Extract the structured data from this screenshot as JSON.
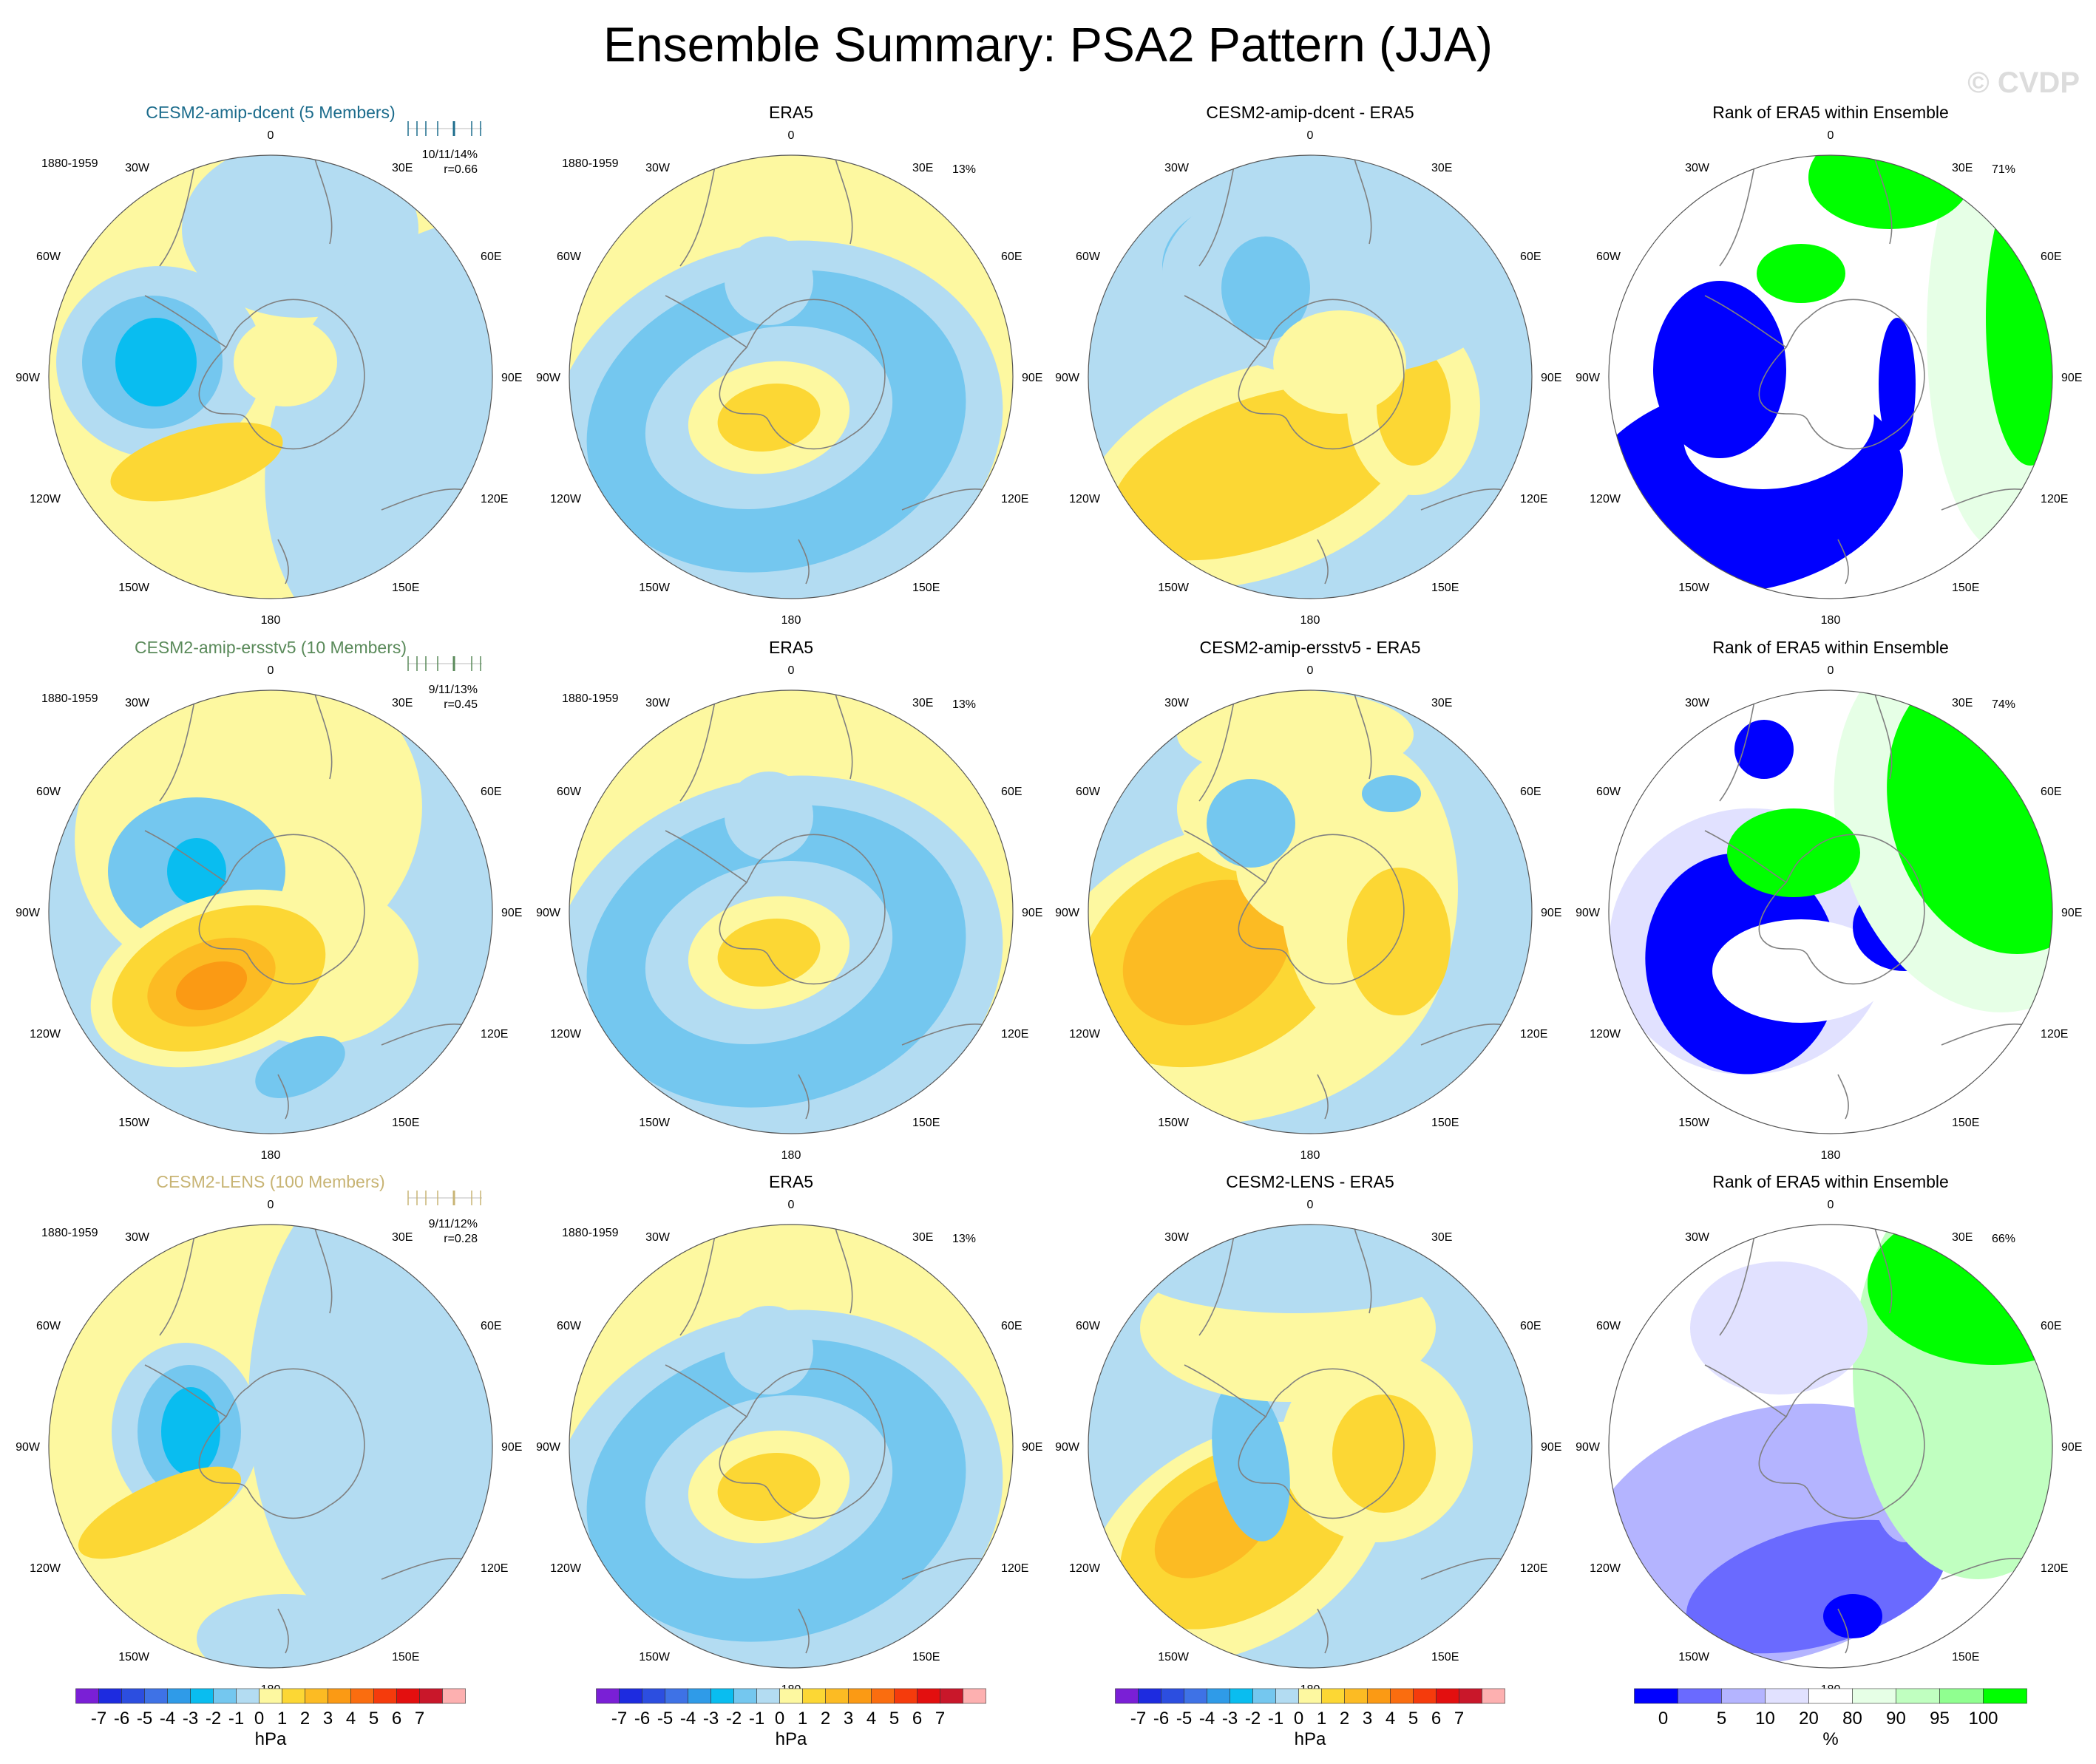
{
  "title": "Ensemble Summary: PSA2 Pattern (JJA)",
  "watermark": "© CVDP",
  "colors": {
    "neg_levels": [
      "#7a1fd6",
      "#1d2be0",
      "#2c4ee0",
      "#3e72e6",
      "#2f9be8",
      "#09bdf0",
      "#74c7ef",
      "#b3dcf2"
    ],
    "pos_levels": [
      "#fdf8a0",
      "#fcd734",
      "#fcbb23",
      "#fb9a14",
      "#fa6d0f",
      "#f53b0c",
      "#e30f0f",
      "#c9172a",
      "#fdb0b0"
    ],
    "ocean_base": "#fdf8a0",
    "rank_levels": [
      "#0000ff",
      "#6a6aff",
      "#b4b4ff",
      "#e1e1ff",
      "#ffffff",
      "#e6ffe6",
      "#c0ffc0",
      "#90ff90",
      "#00ff00"
    ],
    "row_title_colors": [
      "#1c6c8c",
      "#5a8a5a",
      "#c8b474"
    ],
    "land_outline": "#808080"
  },
  "geo_labels": {
    "period": "1880-1959",
    "lon_ticks": [
      "0",
      "30E",
      "60E",
      "90E",
      "120E",
      "150E",
      "180",
      "150W",
      "120W",
      "90W",
      "60W",
      "30W"
    ]
  },
  "rows": [
    {
      "model_title": "CESM2-amip-dcent (5 Members)",
      "obs_title": "ERA5",
      "diff_title": "CESM2-amip-dcent - ERA5",
      "rank_title": "Rank of ERA5 within Ensemble",
      "stats": "10/11/14%",
      "corr": "r=0.66",
      "obs_pct": "13%",
      "rank_pct": "71%"
    },
    {
      "model_title": "CESM2-amip-ersstv5 (10 Members)",
      "obs_title": "ERA5",
      "diff_title": "CESM2-amip-ersstv5 - ERA5",
      "rank_title": "Rank of ERA5 within Ensemble",
      "stats": "9/11/13%",
      "corr": "r=0.45",
      "obs_pct": "13%",
      "rank_pct": "74%"
    },
    {
      "model_title": "CESM2-LENS (100 Members)",
      "obs_title": "ERA5",
      "diff_title": "CESM2-LENS - ERA5",
      "rank_title": "Rank of ERA5 within Ensemble",
      "stats": "9/11/12%",
      "corr": "r=0.28",
      "obs_pct": "13%",
      "rank_pct": "66%"
    }
  ],
  "colorbars": {
    "hpa_labels": [
      "-7",
      "-6",
      "-5",
      "-4",
      "-3",
      "-2",
      "-1",
      "0",
      "1",
      "2",
      "3",
      "4",
      "5",
      "6",
      "7"
    ],
    "hpa_unit": "hPa",
    "rank_labels": [
      "0",
      "5",
      "10",
      "20",
      "80",
      "90",
      "95",
      "100"
    ],
    "rank_unit": "%"
  },
  "chart_data": {
    "type": "heatmap",
    "title": "Ensemble Summary: PSA2 Pattern (JJA)",
    "projection": "south polar stereographic",
    "panels_per_row": [
      "model ensemble mean",
      "ERA5",
      "model - ERA5",
      "Rank of ERA5 within Ensemble"
    ],
    "contour_levels_hpa": [
      -7,
      -6,
      -5,
      -4,
      -3,
      -2,
      -1,
      0,
      1,
      2,
      3,
      4,
      5,
      6,
      7
    ],
    "rank_levels_pct": [
      0,
      5,
      10,
      20,
      80,
      90,
      95,
      100
    ],
    "pattern_correlation": [
      {
        "model": "CESM2-amip-dcent",
        "members": 5,
        "r": 0.66
      },
      {
        "model": "CESM2-amip-ersstv5",
        "members": 10,
        "r": 0.45
      },
      {
        "model": "CESM2-LENS",
        "members": 100,
        "r": 0.28
      }
    ],
    "percent_variance_explained": [
      {
        "model": "CESM2-amip-dcent",
        "ensemble": "10/11/14%",
        "era5": "13%"
      },
      {
        "model": "CESM2-amip-ersstv5",
        "ensemble": "9/11/13%",
        "era5": "13%"
      },
      {
        "model": "CESM2-LENS",
        "ensemble": "9/11/12%",
        "era5": "13%"
      }
    ],
    "rank_area_within_10_90_pct": [
      71,
      74,
      66
    ]
  }
}
